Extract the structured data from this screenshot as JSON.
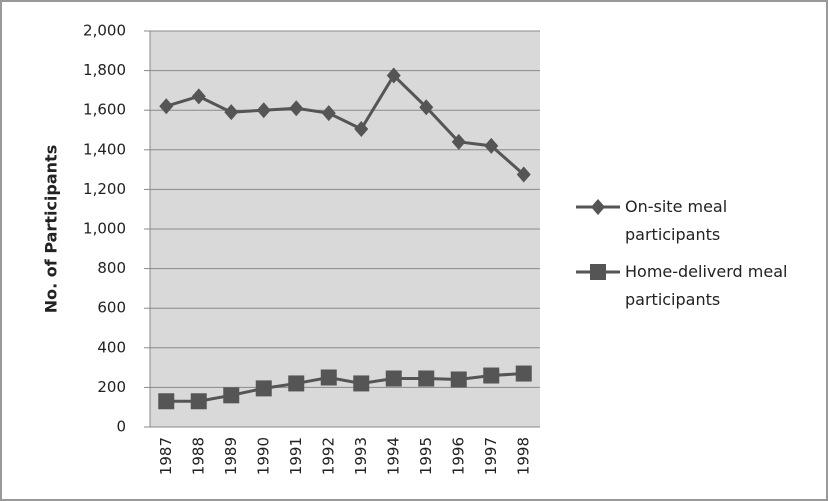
{
  "chart_data": {
    "type": "line",
    "y_label": "No. of Participants",
    "categories": [
      "1987",
      "1988",
      "1989",
      "1990",
      "1991",
      "1992",
      "1993",
      "1994",
      "1995",
      "1996",
      "1997",
      "1998"
    ],
    "series": [
      {
        "name": "On-site meal participants",
        "color": "#555555",
        "marker": "diamond",
        "values": [
          1620,
          1670,
          1590,
          1600,
          1610,
          1585,
          1505,
          1775,
          1615,
          1440,
          1420,
          1275
        ]
      },
      {
        "name": "Home-deliverd meal participants",
        "color": "#555555",
        "marker": "square",
        "values": [
          130,
          130,
          160,
          195,
          220,
          250,
          220,
          245,
          245,
          240,
          260,
          270
        ]
      }
    ],
    "ylim": [
      0,
      2000
    ],
    "yticks": [
      0,
      200,
      400,
      600,
      800,
      {
        "value": 1000,
        "label": "1,000"
      },
      {
        "value": 1200,
        "label": "1,200"
      },
      {
        "value": 1400,
        "label": "1,400"
      },
      {
        "value": 1600,
        "label": "1,600"
      },
      {
        "value": 1800,
        "label": "1,800"
      },
      {
        "value": 2000,
        "label": "2,000"
      }
    ],
    "grid": true,
    "legend": "right",
    "plot_background": "#d9d9d9"
  }
}
